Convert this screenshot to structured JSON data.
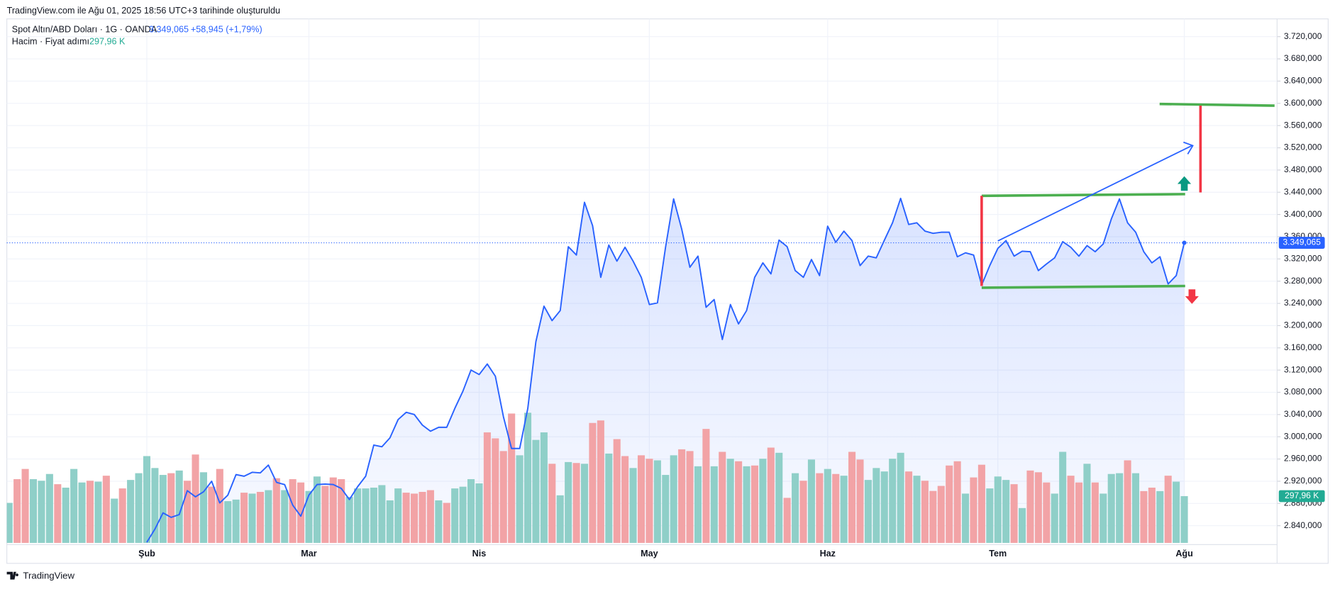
{
  "header": "TradingView.com ile Ağu 01, 2025 18:56 UTC+3 tarihinde oluşturuldu",
  "footer": "TradingView",
  "chart_data": {
    "type": "line",
    "change": "+58,945 (+1,79%)",
    "categories": [
      null,
      null,
      null,
      null,
      null,
      null,
      null,
      null,
      null,
      null,
      null,
      null,
      null,
      null,
      null,
      null,
      null,
      "Şub",
      null,
      null,
      null,
      null,
      null,
      null,
      null,
      null,
      null,
      null,
      null,
      null,
      null,
      null,
      null,
      null,
      null,
      null,
      null,
      "Mar",
      null,
      null,
      null,
      null,
      null,
      null,
      null,
      null,
      null,
      null,
      null,
      null,
      null,
      null,
      null,
      null,
      null,
      null,
      null,
      null,
      "Nis",
      null,
      null,
      null,
      null,
      null,
      null,
      null,
      null,
      null,
      null,
      null,
      null,
      null,
      null,
      null,
      null,
      null,
      null,
      null,
      null,
      "May",
      null,
      null,
      null,
      null,
      null,
      null,
      null,
      null,
      null,
      null,
      null,
      null,
      null,
      null,
      null,
      null,
      null,
      null,
      null,
      null,
      null,
      "Haz",
      null,
      null,
      null,
      null,
      null,
      null,
      null,
      null,
      null,
      null,
      null,
      null,
      null,
      null,
      null,
      null,
      null,
      null,
      null,
      null,
      "Tem",
      null,
      null,
      null,
      null,
      null,
      null,
      null,
      null,
      null,
      null,
      null,
      null,
      null,
      null,
      null,
      null,
      null,
      null,
      null,
      null,
      null,
      null,
      "Ağu"
    ],
    "ylim": [
      2809,
      3752
    ],
    "yticks": [
      {
        "value": 2840,
        "label": "2.840,000"
      },
      {
        "value": 2880,
        "label": "2.880,000"
      },
      {
        "value": 2920,
        "label": "2.920,000"
      },
      {
        "value": 2960,
        "label": "2.960,000"
      },
      {
        "value": 3000,
        "label": "3.000,000"
      },
      {
        "value": 3040,
        "label": "3.040,000"
      },
      {
        "value": 3080,
        "label": "3.080,000"
      },
      {
        "value": 3120,
        "label": "3.120,000"
      },
      {
        "value": 3160,
        "label": "3.160,000"
      },
      {
        "value": 3200,
        "label": "3.200,000"
      },
      {
        "value": 3240,
        "label": "3.240,000"
      },
      {
        "value": 3280,
        "label": "3.280,000"
      },
      {
        "value": 3320,
        "label": "3.320,000"
      },
      {
        "value": 3360,
        "label": "3.360,000"
      },
      {
        "value": 3400,
        "label": "3.400,000"
      },
      {
        "value": 3440,
        "label": "3.440,000"
      },
      {
        "value": 3480,
        "label": "3.480,000"
      },
      {
        "value": 3520,
        "label": "3.520,000"
      },
      {
        "value": 3560,
        "label": "3.560,000"
      },
      {
        "value": 3600,
        "label": "3.600,000"
      },
      {
        "value": 3640,
        "label": "3.640,000"
      },
      {
        "value": 3680,
        "label": "3.680,000"
      },
      {
        "value": 3720,
        "label": "3.720,000"
      }
    ],
    "grid": true,
    "series": [
      {
        "name": "Spot Altın/ABD Doları · 1G · OANDA",
        "type": "line",
        "color": "#2962ff",
        "values": [
          null,
          null,
          null,
          null,
          null,
          null,
          null,
          null,
          null,
          null,
          null,
          null,
          null,
          null,
          null,
          null,
          null,
          2810,
          2834,
          2863,
          2855,
          2860,
          2903,
          2892,
          2901,
          2920,
          2881,
          2895,
          2932,
          2929,
          2936,
          2935,
          2949,
          2918,
          2914,
          2877,
          2857,
          2895,
          2914,
          2915,
          2914,
          2907,
          2887,
          2910,
          2929,
          2985,
          2982,
          2998,
          3031,
          3044,
          3040,
          3021,
          3010,
          3017,
          3017,
          3051,
          3082,
          3120,
          3112,
          3131,
          3109,
          3036,
          2979,
          2979,
          3051,
          3171,
          3235,
          3209,
          3227,
          3342,
          3327,
          3422,
          3380,
          3287,
          3345,
          3316,
          3341,
          3316,
          3287,
          3238,
          3241,
          3341,
          3428,
          3373,
          3305,
          3325,
          3233,
          3247,
          3175,
          3238,
          3203,
          3227,
          3287,
          3313,
          3293,
          3354,
          3342,
          3299,
          3287,
          3319,
          3290,
          3379,
          3350,
          3370,
          3353,
          3308,
          3325,
          3322,
          3354,
          3385,
          3429,
          3382,
          3385,
          3370,
          3366,
          3368,
          3368,
          3324,
          3331,
          3327,
          3273,
          3308,
          3339,
          3353,
          3325,
          3334,
          3333,
          3299,
          3311,
          3322,
          3351,
          3341,
          3325,
          3344,
          3333,
          3347,
          3392,
          3428,
          3385,
          3368,
          3333,
          3313,
          3324,
          3275,
          3290,
          3349.065
        ],
        "value_labels": [
          null,
          null,
          null,
          null,
          null,
          null,
          null,
          null,
          null,
          null,
          null,
          null,
          null,
          null,
          null,
          null,
          null,
          null,
          null,
          null,
          null,
          null,
          null,
          null,
          null,
          null,
          null,
          null,
          null,
          null,
          null,
          null,
          null,
          null,
          null,
          null,
          null,
          null,
          null,
          null,
          null,
          null,
          null,
          null,
          null,
          null,
          null,
          null,
          null,
          null,
          null,
          null,
          null,
          null,
          null,
          null,
          null,
          null,
          null,
          null,
          null,
          null,
          null,
          null,
          null,
          null,
          null,
          null,
          null,
          null,
          null,
          null,
          null,
          null,
          null,
          null,
          null,
          null,
          null,
          null,
          null,
          null,
          null,
          null,
          null,
          null,
          null,
          null,
          null,
          null,
          null,
          null,
          null,
          null,
          null,
          null,
          null,
          null,
          null,
          null,
          null,
          null,
          null,
          null,
          null,
          null,
          null,
          null,
          null,
          null,
          null,
          null,
          null,
          null,
          null,
          null,
          null,
          null,
          null,
          null,
          null,
          null,
          null,
          null,
          null,
          null,
          null,
          null,
          null,
          null,
          null,
          null,
          null,
          null,
          null,
          null,
          null,
          null,
          null,
          null,
          null,
          null,
          null,
          null,
          null,
          "3.349,065"
        ]
      },
      {
        "name": "Hacim · Fiyat adımı",
        "type": "bar",
        "color": "#22ab94",
        "values": [
          255,
          406,
          471,
          406,
          396,
          439,
          374,
          352,
          471,
          385,
          396,
          390,
          428,
          282,
          347,
          401,
          444,
          553,
          477,
          433,
          444,
          461,
          396,
          563,
          450,
          358,
          471,
          266,
          276,
          320,
          314,
          325,
          336,
          412,
          336,
          406,
          385,
          331,
          423,
          363,
          417,
          406,
          293,
          347,
          347,
          352,
          368,
          271,
          347,
          320,
          314,
          325,
          336,
          271,
          255,
          347,
          358,
          406,
          379,
          704,
          666,
          585,
          824,
          558,
          829,
          656,
          704,
          504,
          303,
          515,
          509,
          504,
          764,
          780,
          569,
          661,
          553,
          477,
          558,
          536,
          526,
          433,
          558,
          596,
          585,
          488,
          726,
          488,
          580,
          536,
          520,
          488,
          493,
          536,
          607,
          574,
          287,
          444,
          396,
          531,
          444,
          471,
          439,
          428,
          580,
          531,
          401,
          477,
          455,
          536,
          574,
          455,
          428,
          396,
          331,
          363,
          493,
          520,
          314,
          417,
          498,
          347,
          423,
          401,
          374,
          222,
          461,
          450,
          385,
          314,
          580,
          428,
          385,
          504,
          385,
          314,
          439,
          444,
          526,
          444,
          330,
          352,
          330,
          428,
          390,
          297.96
        ],
        "value_labels": [
          null,
          null,
          null,
          null,
          null,
          null,
          null,
          null,
          null,
          null,
          null,
          null,
          null,
          null,
          null,
          null,
          null,
          null,
          null,
          null,
          null,
          null,
          null,
          null,
          null,
          null,
          null,
          null,
          null,
          null,
          null,
          null,
          null,
          null,
          null,
          null,
          null,
          null,
          null,
          null,
          null,
          null,
          null,
          null,
          null,
          null,
          null,
          null,
          null,
          null,
          null,
          null,
          null,
          null,
          null,
          null,
          null,
          null,
          null,
          null,
          null,
          null,
          null,
          null,
          null,
          null,
          null,
          null,
          null,
          null,
          null,
          null,
          null,
          null,
          null,
          null,
          null,
          null,
          null,
          null,
          null,
          null,
          null,
          null,
          null,
          null,
          null,
          null,
          null,
          null,
          null,
          null,
          null,
          null,
          null,
          null,
          null,
          null,
          null,
          null,
          null,
          null,
          null,
          null,
          null,
          null,
          null,
          null,
          null,
          null,
          null,
          null,
          null,
          null,
          null,
          null,
          null,
          null,
          null,
          null,
          null,
          null,
          null,
          null,
          null,
          null,
          null,
          null,
          null,
          null,
          null,
          null,
          null,
          null,
          null,
          null,
          null,
          null,
          null,
          null,
          null,
          null,
          null,
          null,
          null,
          "297,96 K"
        ],
        "colors": [
          "#8fcfc8",
          "#f2a3a6",
          "#f2a3a6",
          "#8fcfc8",
          "#8fcfc8",
          "#8fcfc8",
          "#f2a3a6",
          "#8fcfc8",
          "#8fcfc8",
          "#8fcfc8",
          "#f2a3a6",
          "#8fcfc8",
          "#f2a3a6",
          "#8fcfc8",
          "#f2a3a6",
          "#8fcfc8",
          "#8fcfc8",
          "#8fcfc8",
          "#8fcfc8",
          "#8fcfc8",
          "#f2a3a6",
          "#8fcfc8",
          "#f2a3a6",
          "#f2a3a6",
          "#8fcfc8",
          "#f2a3a6",
          "#f2a3a6",
          "#8fcfc8",
          "#8fcfc8",
          "#f2a3a6",
          "#8fcfc8",
          "#f2a3a6",
          "#8fcfc8",
          "#f2a3a6",
          "#8fcfc8",
          "#f2a3a6",
          "#f2a3a6",
          "#8fcfc8",
          "#8fcfc8",
          "#f2a3a6",
          "#f2a3a6",
          "#f2a3a6",
          "#8fcfc8",
          "#8fcfc8",
          "#8fcfc8",
          "#8fcfc8",
          "#8fcfc8",
          "#8fcfc8",
          "#8fcfc8",
          "#f2a3a6",
          "#f2a3a6",
          "#f2a3a6",
          "#f2a3a6",
          "#8fcfc8",
          "#f2a3a6",
          "#8fcfc8",
          "#8fcfc8",
          "#8fcfc8",
          "#8fcfc8",
          "#f2a3a6",
          "#f2a3a6",
          "#f2a3a6",
          "#f2a3a6",
          "#8fcfc8",
          "#8fcfc8",
          "#8fcfc8",
          "#8fcfc8",
          "#f2a3a6",
          "#8fcfc8",
          "#8fcfc8",
          "#f2a3a6",
          "#8fcfc8",
          "#f2a3a6",
          "#f2a3a6",
          "#8fcfc8",
          "#f2a3a6",
          "#f2a3a6",
          "#8fcfc8",
          "#f2a3a6",
          "#f2a3a6",
          "#8fcfc8",
          "#8fcfc8",
          "#8fcfc8",
          "#f2a3a6",
          "#f2a3a6",
          "#8fcfc8",
          "#f2a3a6",
          "#8fcfc8",
          "#f2a3a6",
          "#8fcfc8",
          "#f2a3a6",
          "#8fcfc8",
          "#f2a3a6",
          "#8fcfc8",
          "#f2a3a6",
          "#8fcfc8",
          "#f2a3a6",
          "#8fcfc8",
          "#f2a3a6",
          "#8fcfc8",
          "#f2a3a6",
          "#8fcfc8",
          "#f2a3a6",
          "#8fcfc8",
          "#f2a3a6",
          "#f2a3a6",
          "#8fcfc8",
          "#8fcfc8",
          "#8fcfc8",
          "#8fcfc8",
          "#8fcfc8",
          "#f2a3a6",
          "#8fcfc8",
          "#f2a3a6",
          "#f2a3a6",
          "#f2a3a6",
          "#f2a3a6",
          "#f2a3a6",
          "#8fcfc8",
          "#f2a3a6",
          "#f2a3a6",
          "#8fcfc8",
          "#8fcfc8",
          "#8fcfc8",
          "#f2a3a6",
          "#8fcfc8",
          "#f2a3a6",
          "#f2a3a6",
          "#f2a3a6",
          "#8fcfc8",
          "#8fcfc8",
          "#f2a3a6",
          "#f2a3a6",
          "#8fcfc8",
          "#f2a3a6",
          "#8fcfc8",
          "#8fcfc8",
          "#8fcfc8",
          "#f2a3a6",
          "#8fcfc8",
          "#f2a3a6",
          "#f2a3a6",
          "#8fcfc8",
          "#f2a3a6",
          "#8fcfc8",
          "#8fcfc8"
        ]
      }
    ]
  }
}
